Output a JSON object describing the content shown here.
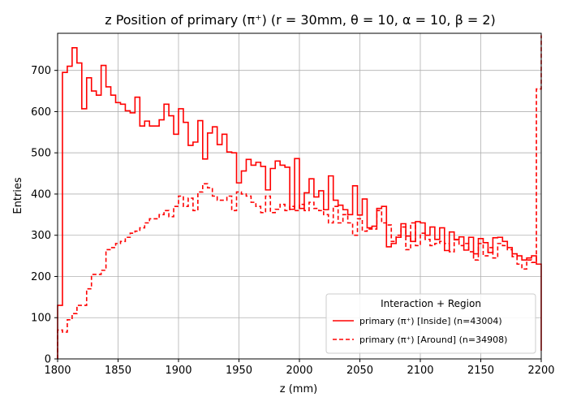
{
  "chart_data": {
    "type": "histogram-step",
    "title": "z Position of primary (π⁺) (r = 30mm, θ = 10, α = 10, β = 2)",
    "xlabel": "z (mm)",
    "ylabel": "Entries",
    "xlim": [
      1800,
      2200
    ],
    "ylim": [
      0,
      790
    ],
    "xticks": [
      1800,
      1850,
      1900,
      1950,
      2000,
      2050,
      2100,
      2150,
      2200
    ],
    "yticks": [
      0,
      100,
      200,
      300,
      400,
      500,
      600,
      700
    ],
    "grid": true,
    "bin_edges_start": 1800,
    "bin_width": 4,
    "legend": {
      "title": "Interaction + Region",
      "placement": "lower-right"
    },
    "series": [
      {
        "name": "primary (π⁺) [Inside] (n=43004)",
        "color": "#ff0000",
        "linestyle": "solid",
        "values": [
          130,
          695,
          710,
          755,
          718,
          607,
          682,
          650,
          640,
          712,
          660,
          640,
          622,
          618,
          602,
          597,
          635,
          565,
          577,
          565,
          565,
          580,
          618,
          590,
          545,
          607,
          574,
          518,
          526,
          578,
          485,
          548,
          563,
          520,
          545,
          502,
          500,
          427,
          456,
          484,
          470,
          477,
          467,
          410,
          462,
          480,
          470,
          465,
          363,
          486,
          365,
          403,
          437,
          393,
          408,
          362,
          444,
          385,
          373,
          362,
          350,
          420,
          349,
          388,
          318,
          322,
          365,
          370,
          272,
          280,
          295,
          328,
          298,
          285,
          333,
          330,
          300,
          320,
          290,
          318,
          263,
          308,
          289,
          296,
          264,
          295,
          255,
          292,
          282,
          258,
          294,
          295,
          285,
          270,
          255,
          250,
          240,
          245,
          250,
          230,
          20
        ]
      },
      {
        "name": "primary (π⁺) [Around] (n=34908)",
        "color": "#ff0000",
        "linestyle": "dashed",
        "values": [
          70,
          65,
          95,
          110,
          130,
          130,
          170,
          205,
          205,
          215,
          265,
          270,
          280,
          285,
          295,
          305,
          310,
          318,
          330,
          340,
          340,
          350,
          360,
          345,
          370,
          395,
          370,
          390,
          360,
          405,
          425,
          415,
          395,
          385,
          385,
          395,
          360,
          405,
          400,
          395,
          380,
          370,
          355,
          395,
          355,
          363,
          375,
          360,
          370,
          360,
          375,
          360,
          380,
          365,
          360,
          350,
          330,
          370,
          330,
          350,
          330,
          300,
          340,
          310,
          315,
          315,
          360,
          330,
          325,
          285,
          300,
          320,
          265,
          330,
          275,
          305,
          290,
          275,
          280,
          285,
          280,
          260,
          290,
          275,
          280,
          260,
          240,
          280,
          250,
          270,
          245,
          280,
          275,
          265,
          248,
          230,
          218,
          240,
          234,
          655,
          785
        ]
      }
    ]
  }
}
